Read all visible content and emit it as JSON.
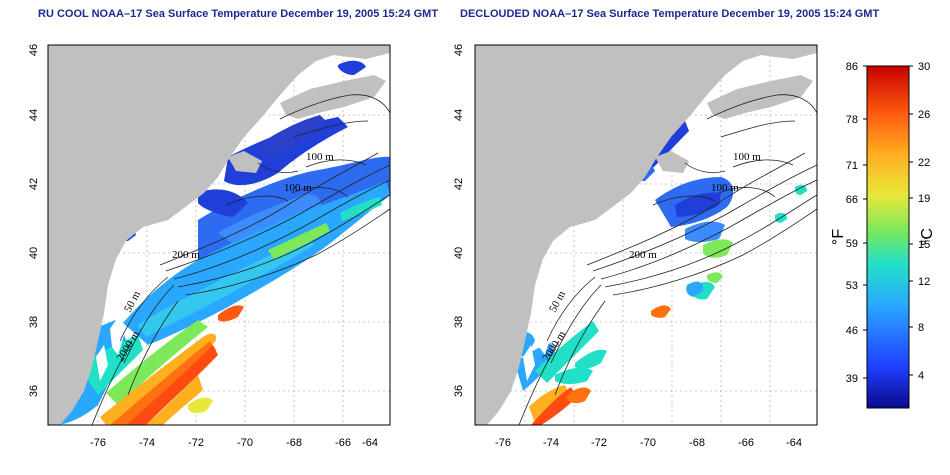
{
  "panels": [
    {
      "title": "RU COOL NOAA–17 Sea Surface Temperature December 19, 2005 15:24 GMT",
      "contour_labels": [
        "100 m",
        "100 m",
        "200 m",
        "50 m",
        "2000 m"
      ]
    },
    {
      "title": "DECLOUDED NOAA–17 Sea Surface Temperature December 19, 2005 15:24 GMT",
      "contour_labels": [
        "100 m",
        "100 m",
        "200 m",
        "50 m",
        "2000 m"
      ]
    }
  ],
  "axes": {
    "lon_ticks": [
      "-76",
      "-74",
      "-72",
      "-70",
      "-68",
      "-66",
      "-64"
    ],
    "lat_ticks": [
      "36",
      "38",
      "40",
      "42",
      "44",
      "46"
    ],
    "lon_range": [
      -77.2,
      -63.0
    ],
    "lat_range": [
      35.0,
      46.0
    ],
    "grid": "dotted"
  },
  "colorbar": {
    "f_ticks": [
      "86",
      "78",
      "71",
      "66",
      "59",
      "53",
      "46",
      "39"
    ],
    "c_ticks": [
      "30",
      "26",
      "22",
      "19",
      "15",
      "12",
      "8",
      "4"
    ],
    "f_unit": "°F",
    "c_unit": "°C",
    "colors": [
      "#0a0a8c",
      "#1f3fff",
      "#2aa8ff",
      "#22e0c8",
      "#7ce85a",
      "#e8e83a",
      "#ffb020",
      "#ff5a10",
      "#c80000"
    ]
  },
  "colors": {
    "land": "#c0c0c0",
    "title": "#1b2a8f"
  }
}
